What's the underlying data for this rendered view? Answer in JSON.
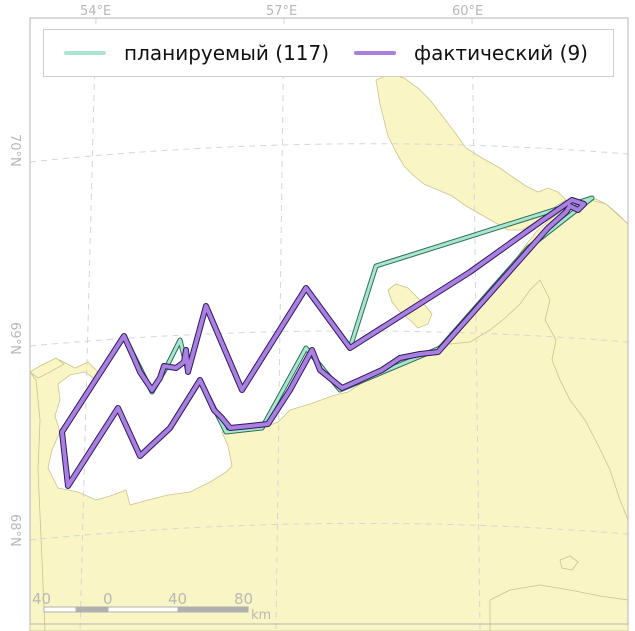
{
  "axes": {
    "lon_labels": [
      "54°E",
      "57°E",
      "60°E"
    ],
    "lat_labels": [
      "70°N",
      "69°N",
      "68°N"
    ]
  },
  "legend": {
    "planned_label": "планируемый (117)",
    "actual_label": "фактический (9)",
    "planned_color": "#a8e6cf",
    "actual_color": "#a97fe0",
    "position": "top"
  },
  "scale_bar": {
    "labels": [
      "40",
      "0",
      "40",
      "80"
    ],
    "unit": "km"
  },
  "colors": {
    "land": "#faf5c4",
    "sea": "#ffffff",
    "coast": "#c9c58e",
    "grid": "#d4d4d4",
    "frame": "#b5b5b5"
  }
}
